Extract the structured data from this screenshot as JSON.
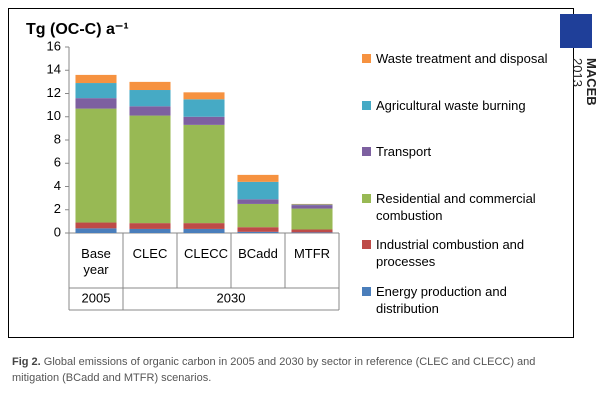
{
  "chart_data": {
    "type": "stacked_bar",
    "title": "Tg (OC-C) a⁻¹",
    "categories": [
      "Base year",
      "CLEC",
      "CLECC",
      "BCadd",
      "MTFR"
    ],
    "groups": [
      {
        "label": "2005",
        "span": 1
      },
      {
        "label": "2030",
        "span": 4
      }
    ],
    "series": [
      {
        "name": "Energy production and distribution",
        "color": "#4a7ebb",
        "values": [
          0.4,
          0.35,
          0.35,
          0.1,
          0.05
        ]
      },
      {
        "name": "Industrial combustion and processes",
        "color": "#be4b48",
        "values": [
          0.5,
          0.5,
          0.5,
          0.4,
          0.25
        ]
      },
      {
        "name": "Residential and commercial combustion",
        "color": "#98b954",
        "values": [
          9.8,
          9.25,
          8.45,
          2.0,
          1.8
        ]
      },
      {
        "name": "Transport",
        "color": "#7d60a0",
        "values": [
          0.9,
          0.8,
          0.7,
          0.4,
          0.3
        ]
      },
      {
        "name": "Agricultural waste burning",
        "color": "#46aac5",
        "values": [
          1.3,
          1.4,
          1.5,
          1.5,
          0.05
        ]
      },
      {
        "name": "Waste treatment and disposal",
        "color": "#f69240",
        "values": [
          0.7,
          0.7,
          0.6,
          0.6,
          0.05
        ]
      }
    ],
    "ylim": [
      0,
      16
    ],
    "yticks": [
      0,
      2,
      4,
      6,
      8,
      10,
      12,
      14,
      16
    ],
    "grid": false
  },
  "caption": {
    "label": "Fig 2.",
    "text": "Global emissions of organic carbon in 2005 and 2030 by sector in reference (CLEC and CLECC) and mitigation (BCadd and MTFR) scenarios."
  },
  "brand": {
    "name": "MACEB",
    "year": "2013"
  }
}
